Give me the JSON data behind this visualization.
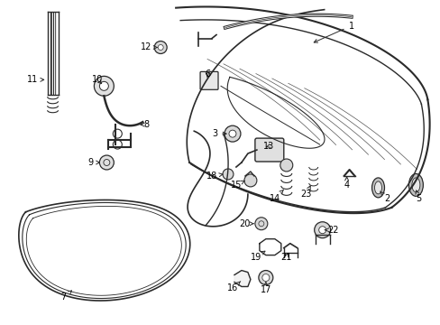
{
  "background_color": "#ffffff",
  "line_color": "#2a2a2a",
  "label_color": "#000000",
  "figsize": [
    4.89,
    3.6
  ],
  "dpi": 100
}
